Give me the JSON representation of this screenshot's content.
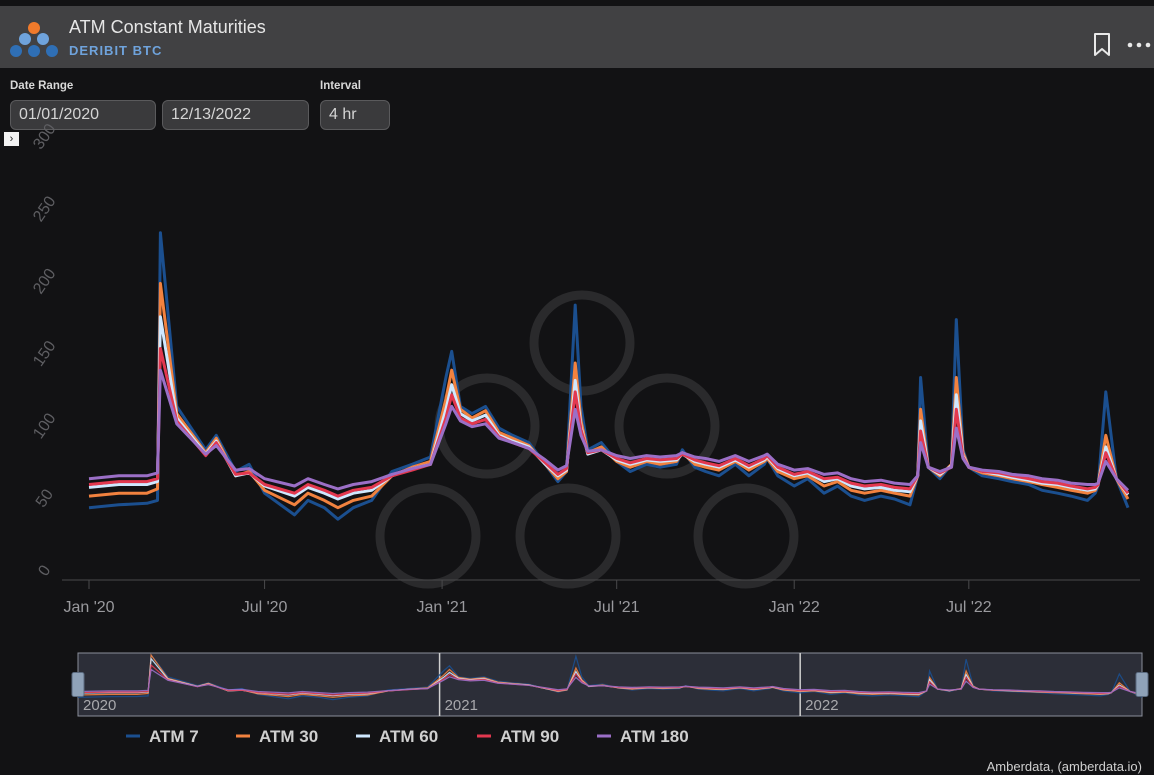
{
  "header": {
    "title": "ATM Constant Maturities",
    "subtitle": "DERIBIT BTC"
  },
  "controls": {
    "date_range_label": "Date Range",
    "start_date": "01/01/2020",
    "end_date": "12/13/2022",
    "interval_label": "Interval",
    "interval": "4 hr"
  },
  "icons": [
    "amberdata-logo-icon",
    "bookmark-icon",
    "more-icon",
    "expand-icon"
  ],
  "navigator": {
    "labels": [
      "2020",
      "2021",
      "2022"
    ]
  },
  "credit": "Amberdata, (amberdata.io)",
  "colors": {
    "background": "#121214",
    "header": "#414143",
    "accent": "#6fa3dc"
  },
  "chart_data": {
    "type": "line",
    "title": "",
    "xlabel": "",
    "ylabel": "",
    "ylim": [
      0,
      300
    ],
    "yticks": [
      0,
      50,
      100,
      150,
      200,
      250,
      300
    ],
    "xtick_labels": [
      "Jan '20",
      "Jul '20",
      "Jan '21",
      "Jul '21",
      "Jan '22",
      "Jul '22"
    ],
    "xtick_dates": [
      "2020-01-01",
      "2020-07-01",
      "2021-01-01",
      "2021-07-01",
      "2022-01-01",
      "2022-07-01"
    ],
    "xlim": [
      "2020-01-01",
      "2022-12-13"
    ],
    "grid": false,
    "legend_position": "bottom",
    "x": [
      "2020-01-01",
      "2020-02-01",
      "2020-03-01",
      "2020-03-12",
      "2020-03-15",
      "2020-04-01",
      "2020-05-01",
      "2020-05-12",
      "2020-06-01",
      "2020-06-15",
      "2020-07-01",
      "2020-08-01",
      "2020-08-15",
      "2020-09-01",
      "2020-09-15",
      "2020-10-01",
      "2020-10-20",
      "2020-11-10",
      "2020-12-01",
      "2020-12-20",
      "2021-01-05",
      "2021-01-11",
      "2021-01-20",
      "2021-02-01",
      "2021-02-15",
      "2021-03-01",
      "2021-03-15",
      "2021-04-01",
      "2021-04-18",
      "2021-05-01",
      "2021-05-10",
      "2021-05-19",
      "2021-05-25",
      "2021-06-01",
      "2021-06-15",
      "2021-07-01",
      "2021-07-15",
      "2021-08-01",
      "2021-08-15",
      "2021-09-01",
      "2021-09-07",
      "2021-09-20",
      "2021-10-01",
      "2021-10-15",
      "2021-11-01",
      "2021-11-15",
      "2021-12-01",
      "2021-12-04",
      "2021-12-15",
      "2022-01-01",
      "2022-01-15",
      "2022-02-01",
      "2022-02-15",
      "2022-03-01",
      "2022-03-15",
      "2022-04-01",
      "2022-04-15",
      "2022-05-01",
      "2022-05-09",
      "2022-05-12",
      "2022-05-20",
      "2022-06-01",
      "2022-06-13",
      "2022-06-18",
      "2022-06-25",
      "2022-07-01",
      "2022-07-15",
      "2022-08-01",
      "2022-08-15",
      "2022-09-01",
      "2022-09-15",
      "2022-10-01",
      "2022-10-15",
      "2022-11-01",
      "2022-11-09",
      "2022-11-12",
      "2022-11-20",
      "2022-12-01",
      "2022-12-13"
    ],
    "series": [
      {
        "name": "ATM 7",
        "color": "#1b4f8f",
        "values": [
          50,
          52,
          53,
          55,
          240,
          120,
          90,
          100,
          75,
          80,
          60,
          45,
          55,
          50,
          42,
          50,
          55,
          75,
          80,
          85,
          140,
          158,
          120,
          115,
          120,
          105,
          100,
          95,
          80,
          68,
          75,
          190,
          120,
          90,
          95,
          82,
          75,
          80,
          78,
          80,
          90,
          78,
          75,
          72,
          80,
          72,
          80,
          84,
          72,
          65,
          70,
          60,
          65,
          58,
          55,
          58,
          56,
          52,
          72,
          140,
          78,
          70,
          80,
          180,
          90,
          78,
          72,
          70,
          68,
          66,
          62,
          60,
          58,
          55,
          60,
          65,
          130,
          70,
          50
        ]
      },
      {
        "name": "ATM 30",
        "color": "#f2823f",
        "values": [
          58,
          60,
          60,
          63,
          205,
          115,
          88,
          98,
          72,
          75,
          62,
          52,
          60,
          55,
          50,
          55,
          58,
          72,
          78,
          82,
          125,
          145,
          118,
          112,
          117,
          102,
          98,
          93,
          80,
          70,
          75,
          150,
          110,
          88,
          92,
          82,
          78,
          82,
          80,
          82,
          88,
          80,
          78,
          76,
          82,
          76,
          82,
          84,
          75,
          70,
          72,
          65,
          68,
          62,
          60,
          62,
          60,
          58,
          72,
          118,
          78,
          72,
          80,
          140,
          88,
          78,
          74,
          72,
          70,
          68,
          66,
          64,
          62,
          60,
          62,
          66,
          100,
          70,
          56
        ]
      },
      {
        "name": "ATM 60",
        "color": "#cfe8ff",
        "values": [
          64,
          66,
          66,
          68,
          182,
          112,
          87,
          96,
          72,
          74,
          65,
          58,
          64,
          60,
          56,
          60,
          62,
          72,
          77,
          80,
          118,
          135,
          115,
          110,
          114,
          100,
          96,
          92,
          80,
          72,
          76,
          138,
          106,
          87,
          90,
          83,
          80,
          83,
          82,
          83,
          87,
          82,
          80,
          78,
          83,
          78,
          83,
          85,
          77,
          72,
          74,
          68,
          70,
          65,
          63,
          64,
          62,
          61,
          72,
          110,
          78,
          73,
          79,
          128,
          86,
          78,
          75,
          73,
          71,
          69,
          67,
          66,
          64,
          62,
          63,
          66,
          92,
          70,
          59
        ]
      },
      {
        "name": "ATM 90",
        "color": "#e2384f",
        "values": [
          66,
          68,
          68,
          70,
          160,
          110,
          86,
          95,
          73,
          74,
          66,
          60,
          66,
          62,
          58,
          62,
          64,
          72,
          76,
          80,
          112,
          128,
          112,
          108,
          111,
          99,
          95,
          91,
          81,
          73,
          77,
          130,
          104,
          88,
          90,
          84,
          81,
          84,
          83,
          84,
          87,
          83,
          81,
          79,
          84,
          79,
          84,
          86,
          78,
          73,
          75,
          70,
          71,
          67,
          65,
          66,
          64,
          63,
          72,
          103,
          78,
          74,
          78,
          118,
          85,
          78,
          75,
          74,
          72,
          70,
          68,
          67,
          65,
          63,
          64,
          66,
          88,
          70,
          60
        ]
      },
      {
        "name": "ATM 180",
        "color": "#9b6fc7",
        "values": [
          70,
          72,
          72,
          74,
          145,
          108,
          87,
          93,
          76,
          77,
          70,
          65,
          70,
          66,
          63,
          66,
          68,
          73,
          77,
          80,
          108,
          120,
          110,
          106,
          108,
          98,
          95,
          91,
          83,
          76,
          79,
          118,
          100,
          89,
          90,
          86,
          84,
          86,
          85,
          86,
          88,
          85,
          84,
          82,
          86,
          82,
          86,
          87,
          80,
          76,
          77,
          73,
          74,
          70,
          68,
          69,
          67,
          66,
          72,
          95,
          78,
          75,
          78,
          105,
          84,
          78,
          76,
          75,
          73,
          72,
          70,
          69,
          67,
          66,
          66,
          67,
          82,
          70,
          62
        ]
      }
    ]
  }
}
